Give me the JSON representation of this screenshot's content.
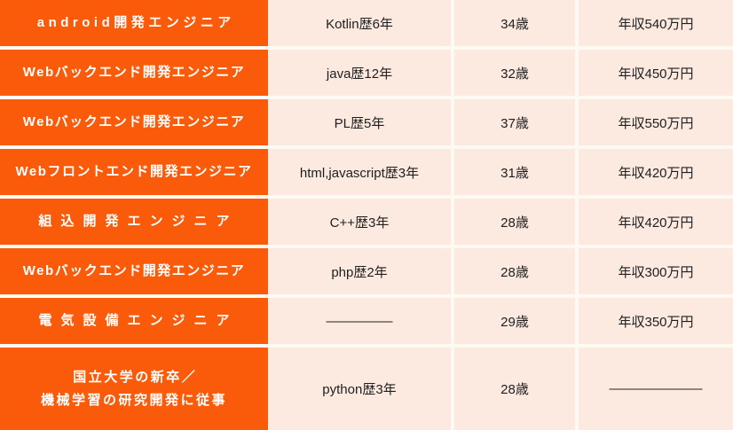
{
  "colors": {
    "accent_orange": "#F95B0A",
    "cell_peach": "#FCE9E0",
    "gap_white": "#FFF9F4",
    "role_text": "#FFFFFF",
    "data_text": "#1F1F1F"
  },
  "table": {
    "columns": [
      "role",
      "experience",
      "age",
      "salary"
    ],
    "rows": [
      {
        "role": "android開発エンジニア",
        "experience": "Kotlin歴6年",
        "age": "34歳",
        "salary": "年収540万円"
      },
      {
        "role": "Webバックエンド開発エンジニア",
        "experience": "java歴12年",
        "age": "32歳",
        "salary": "年収450万円"
      },
      {
        "role": "Webバックエンド開発エンジニア",
        "experience": "PL歴5年",
        "age": "37歳",
        "salary": "年収550万円"
      },
      {
        "role": "Webフロントエンド開発エンジニア",
        "experience": "html,javascript歴3年",
        "age": "31歳",
        "salary": "年収420万円"
      },
      {
        "role": "組込開発エンジニア",
        "experience": "C++歴3年",
        "age": "28歳",
        "salary": "年収420万円"
      },
      {
        "role": "Webバックエンド開発エンジニア",
        "experience": "php歴2年",
        "age": "28歳",
        "salary": "年収300万円"
      },
      {
        "role": "電気設備エンジニア",
        "experience": "―――――",
        "age": "29歳",
        "salary": "年収350万円"
      },
      {
        "role": "国立大学の新卒／\n機械学習の研究開発に従事",
        "experience": "python歴3年",
        "age": "28歳",
        "salary": "―――――――"
      }
    ]
  }
}
